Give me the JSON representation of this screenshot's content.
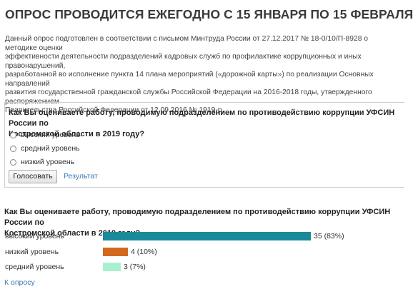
{
  "header": {
    "title": "ОПРОС ПРОВОДИТСЯ ЕЖЕГОДНО С 15 ЯНВАРЯ ПО 15 ФЕВРАЛЯ"
  },
  "intro": {
    "text": "Данный опрос подготовлен в соответствии с письмом Минтруда России от 27.12.2017 № 18-0/10/П-8928 о методике оценки\nэффективности деятельности подразделений кадровых служб по профилактике коррупционных и иных правонарушений,\nразработанной во исполнение пункта 14 плана мероприятий («дорожной карты») по реализации Основных направлений\nразвития государственной гражданской службы Российской Федерации на 2016-2018 годы, утвержденного распоряжением\nПравительства Российской Федерации от 12.09.2016 № 1919-р."
  },
  "poll": {
    "question": "Как Вы оцениваете работу, проводимую подразделением по противодействию коррупции УФСИН России по\nКостромской области в 2019 году?",
    "options": [
      {
        "label": "высокий уровень"
      },
      {
        "label": "средний уровень"
      },
      {
        "label": "низкий уровень"
      }
    ],
    "vote_label": "Голосовать",
    "results_label": "Результат"
  },
  "results": {
    "question": "Как Вы оцениваете работу, проводимую подразделением по противодействию коррупции УФСИН России по\nКостромской области в 2018 году?",
    "rows": [
      {
        "label": "высокий уровень",
        "count": 35,
        "percent": 83,
        "value_text": "35 (83%)",
        "color": "#1a8a9a"
      },
      {
        "label": "низкий уровень",
        "count": 4,
        "percent": 10,
        "value_text": "4 (10%)",
        "color": "#d2691e"
      },
      {
        "label": "средний уровень",
        "count": 3,
        "percent": 7,
        "value_text": "3 (7%)",
        "color": "#a8f0cf"
      }
    ],
    "back_label": "К опросу"
  }
}
